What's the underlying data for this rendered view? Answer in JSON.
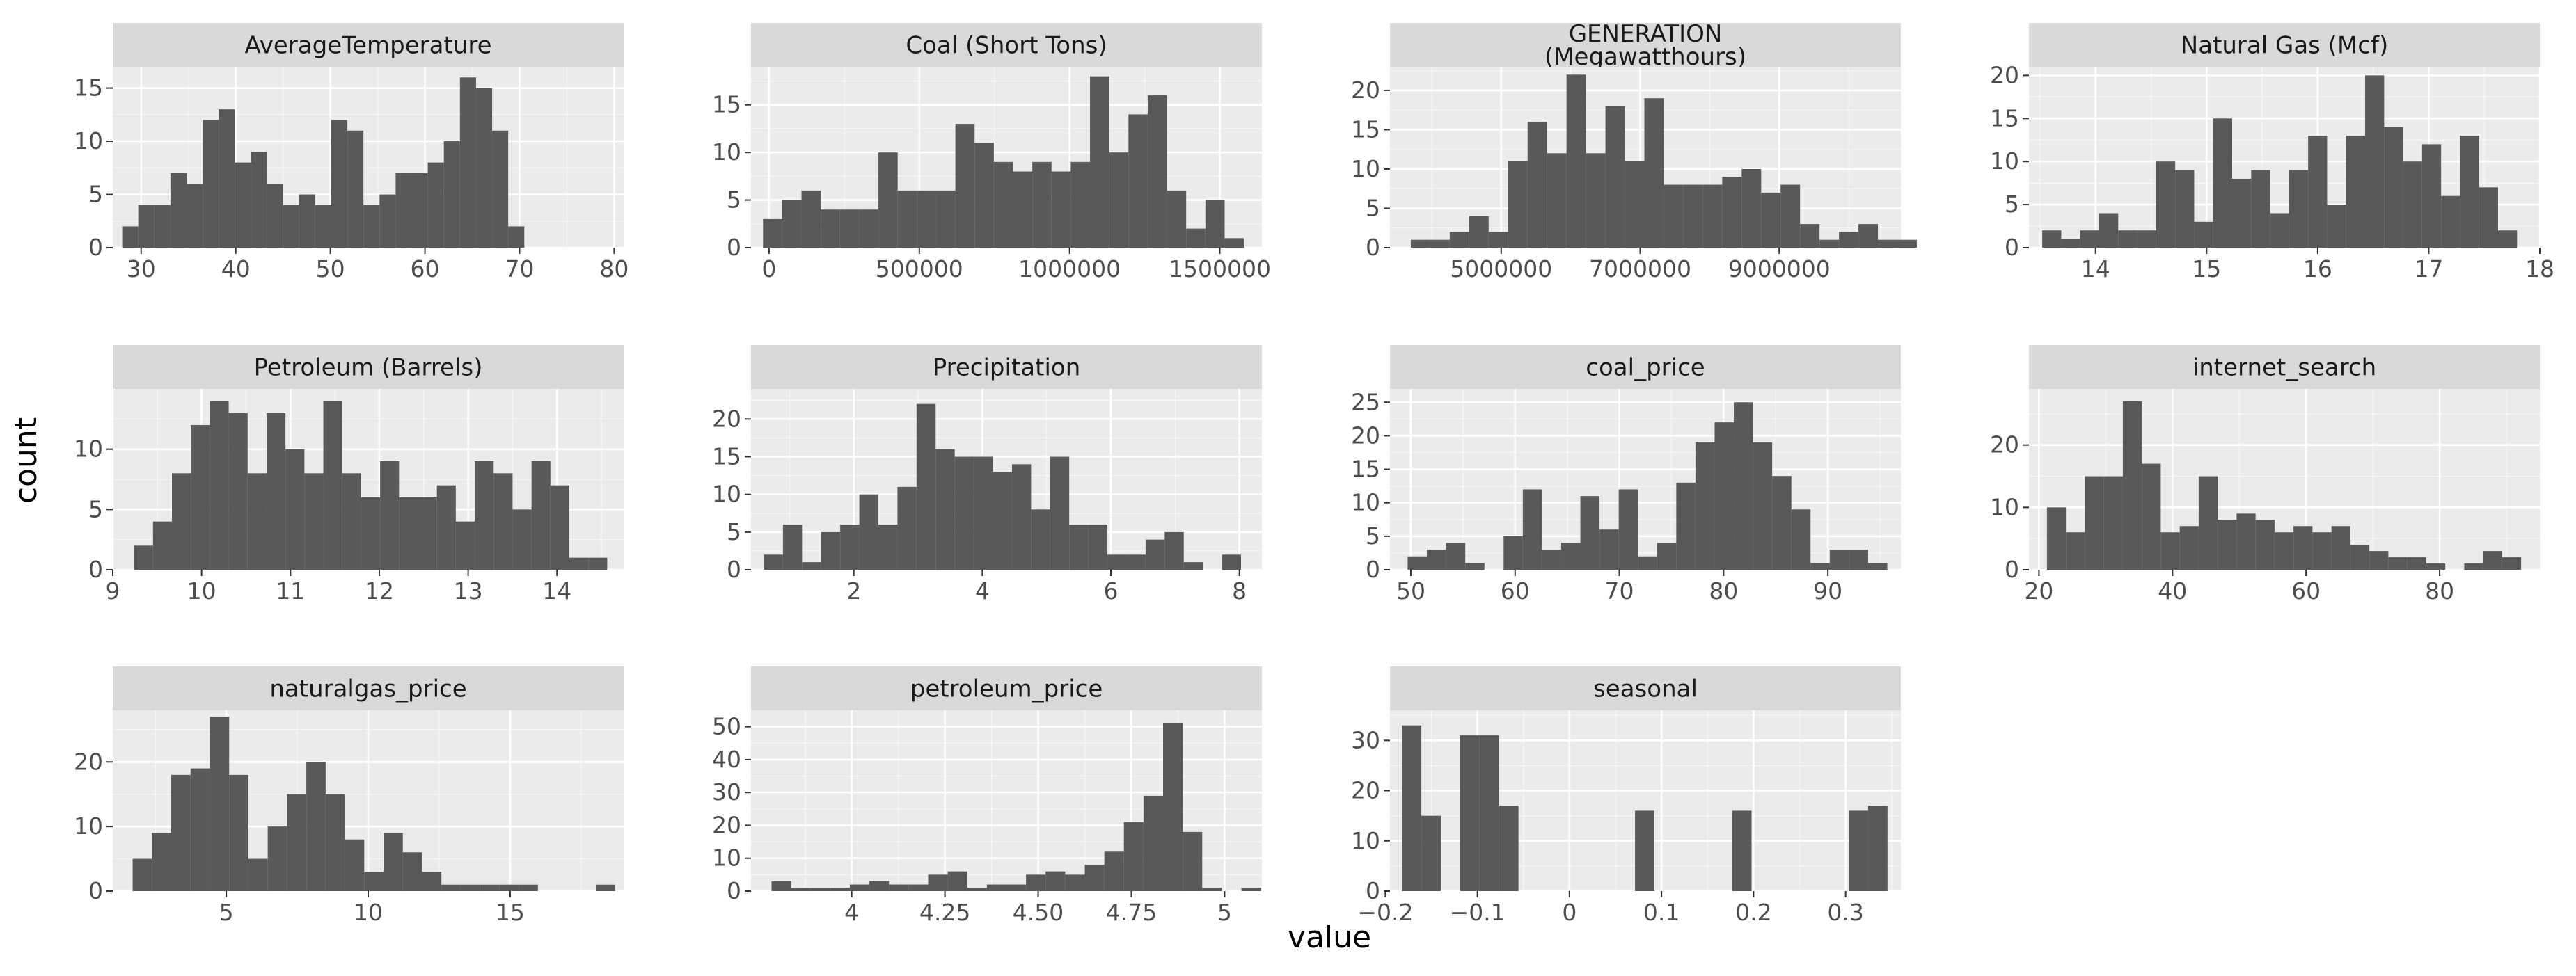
{
  "figure": {
    "xlabel": "value",
    "ylabel": "count"
  },
  "colors": {
    "panel_bg": "#ebebeb",
    "strip_bg": "#d9d9d9",
    "bar": "#595959",
    "grid_major": "#ffffff",
    "tick": "#333333"
  },
  "chart_data": [
    {
      "type": "bar",
      "title_lines": [
        "AverageTemperature"
      ],
      "xlim": [
        27,
        81
      ],
      "ylim": [
        0,
        17
      ],
      "xticks": [
        30,
        40,
        50,
        60,
        70,
        80
      ],
      "xtick_labels": [
        "30",
        "40",
        "50",
        "60",
        "70",
        "80"
      ],
      "yticks": [
        0,
        5,
        10,
        15
      ],
      "ytick_labels": [
        "0",
        "5",
        "10",
        "15"
      ],
      "bin_start": 28,
      "bin_width": 1.7,
      "values": [
        2,
        4,
        4,
        7,
        6,
        12,
        13,
        8,
        9,
        6,
        4,
        5,
        4,
        12,
        11,
        4,
        5,
        7,
        7,
        8,
        10,
        16,
        15,
        11,
        2
      ]
    },
    {
      "type": "bar",
      "title_lines": [
        "Coal (Short Tons)"
      ],
      "xlim": [
        -60000,
        1640000
      ],
      "ylim": [
        0,
        19
      ],
      "xticks": [
        0,
        500000,
        1000000,
        1500000
      ],
      "xtick_labels": [
        "0",
        "500000",
        "1000000",
        "1500000"
      ],
      "yticks": [
        0,
        5,
        10,
        15
      ],
      "ytick_labels": [
        "0",
        "5",
        "10",
        "15"
      ],
      "bin_start": -20000,
      "bin_width": 64000,
      "values": [
        3,
        5,
        6,
        4,
        4,
        4,
        10,
        6,
        6,
        6,
        13,
        11,
        9,
        8,
        9,
        8,
        9,
        18,
        10,
        14,
        16,
        6,
        2,
        5,
        1
      ]
    },
    {
      "type": "bar",
      "title_lines": [
        "GENERATION",
        "(Megawatthours)"
      ],
      "xlim": [
        3400000,
        10750000
      ],
      "ylim": [
        0,
        23
      ],
      "xticks": [
        5000000,
        7000000,
        9000000
      ],
      "xtick_labels": [
        "5000000",
        "7000000",
        "9000000"
      ],
      "yticks": [
        0,
        5,
        10,
        15,
        20
      ],
      "ytick_labels": [
        "0",
        "5",
        "10",
        "15",
        "20"
      ],
      "bin_start": 3700000,
      "bin_width": 280000,
      "values": [
        1,
        1,
        2,
        4,
        2,
        11,
        16,
        12,
        22,
        12,
        18,
        11,
        19,
        8,
        8,
        8,
        9,
        10,
        7,
        8,
        3,
        1,
        2,
        3,
        1,
        1
      ]
    },
    {
      "type": "bar",
      "title_lines": [
        "Natural Gas (Mcf)"
      ],
      "xlim": [
        13.4,
        18.0
      ],
      "ylim": [
        0,
        21
      ],
      "xticks": [
        14,
        15,
        16,
        17,
        18
      ],
      "xtick_labels": [
        "14",
        "15",
        "16",
        "17",
        "18"
      ],
      "yticks": [
        0,
        5,
        10,
        15,
        20
      ],
      "ytick_labels": [
        "0",
        "5",
        "10",
        "15",
        "20"
      ],
      "bin_start": 13.52,
      "bin_width": 0.171,
      "values": [
        2,
        1,
        2,
        4,
        2,
        2,
        10,
        9,
        3,
        15,
        8,
        9,
        4,
        9,
        13,
        5,
        13,
        20,
        14,
        10,
        12,
        6,
        13,
        7,
        2
      ]
    },
    {
      "type": "bar",
      "title_lines": [
        "Petroleum (Barrels)"
      ],
      "xlim": [
        9.0,
        14.75
      ],
      "ylim": [
        0,
        15
      ],
      "xticks": [
        9,
        10,
        11,
        12,
        13,
        14
      ],
      "xtick_labels": [
        "9",
        "10",
        "11",
        "12",
        "13",
        "14"
      ],
      "yticks": [
        0,
        5,
        10
      ],
      "ytick_labels": [
        "0",
        "5",
        "10"
      ],
      "bin_start": 9.24,
      "bin_width": 0.213,
      "values": [
        2,
        4,
        8,
        12,
        14,
        13,
        8,
        13,
        10,
        8,
        14,
        8,
        6,
        9,
        6,
        6,
        7,
        4,
        9,
        8,
        5,
        9,
        7,
        1,
        1
      ]
    },
    {
      "type": "bar",
      "title_lines": [
        "Precipitation"
      ],
      "xlim": [
        0.4,
        8.35
      ],
      "ylim": [
        0,
        24
      ],
      "xticks": [
        2,
        4,
        6,
        8
      ],
      "xtick_labels": [
        "2",
        "4",
        "6",
        "8"
      ],
      "yticks": [
        0,
        5,
        10,
        15,
        20
      ],
      "ytick_labels": [
        "0",
        "5",
        "10",
        "15",
        "20"
      ],
      "bin_start": 0.6,
      "bin_width": 0.297,
      "values": [
        2,
        6,
        1,
        5,
        6,
        10,
        6,
        11,
        22,
        16,
        15,
        15,
        13,
        14,
        8,
        15,
        6,
        6,
        2,
        2,
        4,
        5,
        1,
        0,
        2
      ]
    },
    {
      "type": "bar",
      "title_lines": [
        "coal_price"
      ],
      "xlim": [
        48,
        97
      ],
      "ylim": [
        0,
        27
      ],
      "xticks": [
        50,
        60,
        70,
        80,
        90
      ],
      "xtick_labels": [
        "50",
        "60",
        "70",
        "80",
        "90"
      ],
      "yticks": [
        0,
        5,
        10,
        15,
        20,
        25
      ],
      "ytick_labels": [
        "0",
        "5",
        "10",
        "15",
        "20",
        "25"
      ],
      "bin_start": 49.7,
      "bin_width": 1.84,
      "values": [
        2,
        3,
        4,
        1,
        0,
        5,
        12,
        3,
        4,
        11,
        6,
        12,
        2,
        4,
        13,
        19,
        22,
        25,
        19,
        14,
        9,
        1,
        3,
        3,
        1
      ]
    },
    {
      "type": "bar",
      "title_lines": [
        "internet_search"
      ],
      "xlim": [
        18.5,
        95
      ],
      "ylim": [
        0,
        29
      ],
      "xticks": [
        20,
        40,
        60,
        80
      ],
      "xtick_labels": [
        "20",
        "40",
        "60",
        "80"
      ],
      "yticks": [
        0,
        10,
        20
      ],
      "ytick_labels": [
        "0",
        "10",
        "20"
      ],
      "bin_start": 21.2,
      "bin_width": 2.84,
      "values": [
        10,
        6,
        15,
        15,
        27,
        17,
        6,
        7,
        15,
        8,
        9,
        8,
        6,
        7,
        6,
        7,
        4,
        3,
        2,
        2,
        1,
        0,
        1,
        3,
        2
      ]
    },
    {
      "type": "bar",
      "title_lines": [
        "naturalgas_price"
      ],
      "xlim": [
        1.0,
        19.0
      ],
      "ylim": [
        0,
        28
      ],
      "xticks": [
        5,
        10,
        15
      ],
      "xtick_labels": [
        "5",
        "10",
        "15"
      ],
      "yticks": [
        0,
        10,
        20
      ],
      "ytick_labels": [
        "0",
        "10",
        "20"
      ],
      "bin_start": 1.7,
      "bin_width": 0.68,
      "values": [
        5,
        9,
        18,
        19,
        27,
        18,
        5,
        10,
        15,
        20,
        15,
        8,
        3,
        9,
        6,
        3,
        1,
        1,
        1,
        1,
        1,
        0,
        0,
        0,
        1
      ]
    },
    {
      "type": "bar",
      "title_lines": [
        "petroleum_price"
      ],
      "xlim": [
        3.73,
        5.1
      ],
      "ylim": [
        0,
        55
      ],
      "xticks": [
        4,
        4.25,
        4.5,
        4.75,
        5
      ],
      "xtick_labels": [
        "4",
        "4.25",
        "4.50",
        "4.75",
        "5"
      ],
      "yticks": [
        0,
        10,
        20,
        30,
        40,
        50
      ],
      "ytick_labels": [
        "0",
        "10",
        "20",
        "30",
        "40",
        "50"
      ],
      "bin_start": 3.785,
      "bin_width": 0.0525,
      "values": [
        3,
        1,
        1,
        1,
        2,
        3,
        2,
        2,
        5,
        6,
        1,
        2,
        2,
        5,
        6,
        5,
        8,
        12,
        21,
        29,
        51,
        18,
        1,
        0,
        1
      ]
    },
    {
      "type": "bar",
      "title_lines": [
        "seasonal"
      ],
      "xlim": [
        -0.195,
        0.36
      ],
      "ylim": [
        0,
        36
      ],
      "xticks": [
        -0.2,
        -0.1,
        0,
        0.1,
        0.2,
        0.3
      ],
      "xtick_labels": [
        "−0.2",
        "−0.1",
        "0",
        "0.1",
        "0.2",
        "0.3"
      ],
      "yticks": [
        0,
        10,
        20,
        30
      ],
      "ytick_labels": [
        "0",
        "10",
        "20",
        "30"
      ],
      "bin_start": -0.182,
      "bin_width": 0.0211,
      "values": [
        33,
        15,
        0,
        31,
        31,
        17,
        0,
        0,
        0,
        0,
        0,
        0,
        16,
        0,
        0,
        0,
        0,
        16,
        0,
        0,
        0,
        0,
        0,
        16,
        17
      ]
    }
  ]
}
